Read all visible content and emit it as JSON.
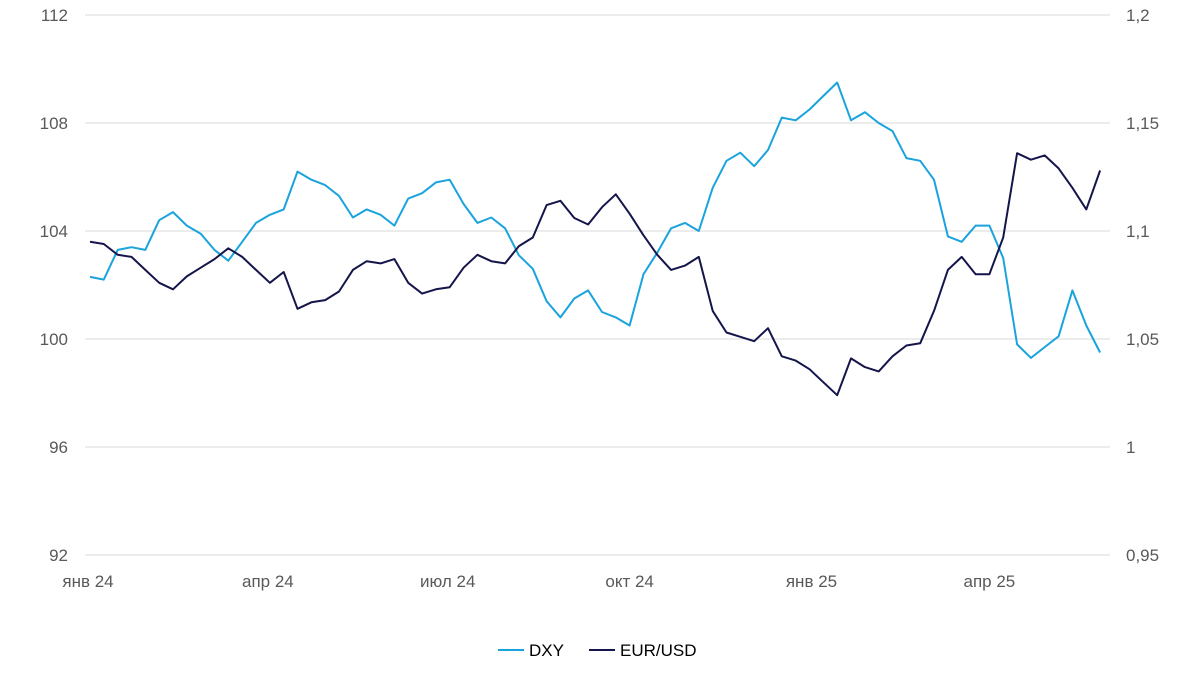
{
  "chart_data": {
    "type": "line",
    "x_ticks": [
      "янв 24",
      "апр 24",
      "июл 24",
      "окт 24",
      "янв 25",
      "апр 25"
    ],
    "x_tick_dates": [
      "2024-01-01",
      "2024-04-01",
      "2024-07-01",
      "2024-10-01",
      "2025-01-01",
      "2025-04-01"
    ],
    "x_range": [
      "2024-01-01",
      "2025-05-31"
    ],
    "y_left": {
      "ticks": [
        "112",
        "108",
        "104",
        "100",
        "96",
        "92"
      ],
      "range": [
        92,
        112
      ]
    },
    "y_right": {
      "ticks": [
        "1,2",
        "1,15",
        "1,1",
        "1,05",
        "1",
        "0,95"
      ],
      "range": [
        0.95,
        1.2
      ]
    },
    "grid": true,
    "legend_position": "bottom",
    "series": [
      {
        "name": "DXY",
        "axis": "left",
        "color": "#1aa3dd",
        "x": [
          "2024-01-02",
          "2024-01-09",
          "2024-01-16",
          "2024-01-23",
          "2024-01-30",
          "2024-02-06",
          "2024-02-13",
          "2024-02-20",
          "2024-02-27",
          "2024-03-05",
          "2024-03-12",
          "2024-03-19",
          "2024-03-26",
          "2024-04-02",
          "2024-04-09",
          "2024-04-16",
          "2024-04-23",
          "2024-04-30",
          "2024-05-07",
          "2024-05-14",
          "2024-05-21",
          "2024-05-28",
          "2024-06-04",
          "2024-06-11",
          "2024-06-18",
          "2024-06-25",
          "2024-07-02",
          "2024-07-09",
          "2024-07-16",
          "2024-07-23",
          "2024-07-30",
          "2024-08-06",
          "2024-08-13",
          "2024-08-20",
          "2024-08-27",
          "2024-09-03",
          "2024-09-10",
          "2024-09-17",
          "2024-09-24",
          "2024-10-01",
          "2024-10-08",
          "2024-10-15",
          "2024-10-22",
          "2024-10-29",
          "2024-11-05",
          "2024-11-12",
          "2024-11-19",
          "2024-11-26",
          "2024-12-03",
          "2024-12-10",
          "2024-12-17",
          "2024-12-24",
          "2024-12-31",
          "2025-01-07",
          "2025-01-14",
          "2025-01-21",
          "2025-01-28",
          "2025-02-04",
          "2025-02-11",
          "2025-02-18",
          "2025-02-25",
          "2025-03-04",
          "2025-03-11",
          "2025-03-18",
          "2025-03-25",
          "2025-04-01",
          "2025-04-08",
          "2025-04-15",
          "2025-04-22",
          "2025-04-29",
          "2025-05-06",
          "2025-05-13",
          "2025-05-20",
          "2025-05-27"
        ],
        "values": [
          102.3,
          102.2,
          103.3,
          103.4,
          103.3,
          104.4,
          104.7,
          104.2,
          103.9,
          103.3,
          102.9,
          103.6,
          104.3,
          104.6,
          104.8,
          106.2,
          105.9,
          105.7,
          105.3,
          104.5,
          104.8,
          104.6,
          104.2,
          105.2,
          105.4,
          105.8,
          105.9,
          105.0,
          104.3,
          104.5,
          104.1,
          103.1,
          102.6,
          101.4,
          100.8,
          101.5,
          101.8,
          101.0,
          100.8,
          100.5,
          102.4,
          103.2,
          104.1,
          104.3,
          104.0,
          105.6,
          106.6,
          106.9,
          106.4,
          107.0,
          108.2,
          108.1,
          108.5,
          109.0,
          109.5,
          108.1,
          108.4,
          108.0,
          107.7,
          106.7,
          106.6,
          105.9,
          103.8,
          103.6,
          104.2,
          104.2,
          103.0,
          99.8,
          99.3,
          99.7,
          100.1,
          101.8,
          100.5,
          99.5
        ]
      },
      {
        "name": "EUR/USD",
        "axis": "right",
        "color": "#14154a",
        "x": [
          "2024-01-02",
          "2024-01-09",
          "2024-01-16",
          "2024-01-23",
          "2024-01-30",
          "2024-02-06",
          "2024-02-13",
          "2024-02-20",
          "2024-02-27",
          "2024-03-05",
          "2024-03-12",
          "2024-03-19",
          "2024-03-26",
          "2024-04-02",
          "2024-04-09",
          "2024-04-16",
          "2024-04-23",
          "2024-04-30",
          "2024-05-07",
          "2024-05-14",
          "2024-05-21",
          "2024-05-28",
          "2024-06-04",
          "2024-06-11",
          "2024-06-18",
          "2024-06-25",
          "2024-07-02",
          "2024-07-09",
          "2024-07-16",
          "2024-07-23",
          "2024-07-30",
          "2024-08-06",
          "2024-08-13",
          "2024-08-20",
          "2024-08-27",
          "2024-09-03",
          "2024-09-10",
          "2024-09-17",
          "2024-09-24",
          "2024-10-01",
          "2024-10-08",
          "2024-10-15",
          "2024-10-22",
          "2024-10-29",
          "2024-11-05",
          "2024-11-12",
          "2024-11-19",
          "2024-11-26",
          "2024-12-03",
          "2024-12-10",
          "2024-12-17",
          "2024-12-24",
          "2024-12-31",
          "2025-01-07",
          "2025-01-14",
          "2025-01-21",
          "2025-01-28",
          "2025-02-04",
          "2025-02-11",
          "2025-02-18",
          "2025-02-25",
          "2025-03-04",
          "2025-03-11",
          "2025-03-18",
          "2025-03-25",
          "2025-04-01",
          "2025-04-08",
          "2025-04-15",
          "2025-04-22",
          "2025-04-29",
          "2025-05-06",
          "2025-05-13",
          "2025-05-20",
          "2025-05-27"
        ],
        "values": [
          1.095,
          1.094,
          1.089,
          1.088,
          1.082,
          1.076,
          1.073,
          1.079,
          1.083,
          1.087,
          1.092,
          1.088,
          1.082,
          1.076,
          1.081,
          1.064,
          1.067,
          1.068,
          1.072,
          1.082,
          1.086,
          1.085,
          1.087,
          1.076,
          1.071,
          1.073,
          1.074,
          1.083,
          1.089,
          1.086,
          1.085,
          1.093,
          1.097,
          1.112,
          1.114,
          1.106,
          1.103,
          1.111,
          1.117,
          1.108,
          1.098,
          1.089,
          1.082,
          1.084,
          1.088,
          1.063,
          1.053,
          1.051,
          1.049,
          1.055,
          1.042,
          1.04,
          1.036,
          1.03,
          1.024,
          1.041,
          1.037,
          1.035,
          1.042,
          1.047,
          1.048,
          1.063,
          1.082,
          1.088,
          1.08,
          1.08,
          1.097,
          1.136,
          1.133,
          1.135,
          1.129,
          1.12,
          1.11,
          1.128
        ]
      }
    ]
  }
}
